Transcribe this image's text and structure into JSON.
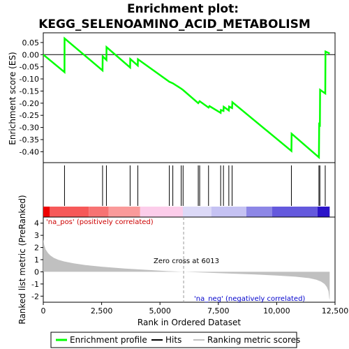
{
  "chart_data": {
    "type": "line",
    "title_line1": "Enrichment plot:",
    "title_line2": "KEGG_SELENOAMINO_ACID_METABOLISM",
    "es_panel": {
      "ylabel": "Enrichment score (ES)",
      "ylim": [
        -0.445,
        0.09
      ],
      "yticks": [
        0.05,
        0.0,
        -0.05,
        -0.1,
        -0.15,
        -0.2,
        -0.25,
        -0.3,
        -0.35,
        -0.4
      ],
      "ytick_labels": [
        "0.05",
        "0.00",
        "-0.05",
        "-0.10",
        "-0.15",
        "-0.20",
        "-0.25",
        "-0.30",
        "-0.35",
        "-0.40"
      ],
      "line_color": "#00ff00",
      "points": [
        [
          0,
          0.0
        ],
        [
          910,
          -0.072
        ],
        [
          912,
          0.067
        ],
        [
          2540,
          -0.065
        ],
        [
          2545,
          -0.007
        ],
        [
          2705,
          -0.022
        ],
        [
          2710,
          0.031
        ],
        [
          3720,
          -0.053
        ],
        [
          3725,
          -0.018
        ],
        [
          4050,
          -0.045
        ],
        [
          4055,
          -0.019
        ],
        [
          5400,
          -0.112
        ],
        [
          5550,
          -0.118
        ],
        [
          5910,
          -0.14
        ],
        [
          5990,
          -0.146
        ],
        [
          6640,
          -0.2
        ],
        [
          6700,
          -0.192
        ],
        [
          7080,
          -0.218
        ],
        [
          7120,
          -0.212
        ],
        [
          7600,
          -0.24
        ],
        [
          7610,
          -0.228
        ],
        [
          7720,
          -0.232
        ],
        [
          7730,
          -0.215
        ],
        [
          7950,
          -0.23
        ],
        [
          7960,
          -0.214
        ],
        [
          8090,
          -0.22
        ],
        [
          8100,
          -0.196
        ],
        [
          10630,
          -0.397
        ],
        [
          10640,
          -0.326
        ],
        [
          11810,
          -0.423
        ],
        [
          11820,
          -0.287
        ],
        [
          11850,
          -0.29
        ],
        [
          11860,
          -0.145
        ],
        [
          12080,
          -0.16
        ],
        [
          12090,
          0.013
        ],
        [
          12270,
          0.005
        ]
      ]
    },
    "hits": [
      910,
      2540,
      2705,
      3720,
      4050,
      5400,
      5550,
      5910,
      5990,
      6640,
      6700,
      7080,
      7600,
      7720,
      7950,
      8090,
      10630,
      11810,
      11850,
      12080
    ],
    "rank_bar_label_pos": "'na_pos' (positively correlated)",
    "rank_bar_label_neg": "'na_neg' (negatively correlated)",
    "colorbar_segments": [
      {
        "from": 0,
        "to": 280,
        "color": "#ee0000"
      },
      {
        "from": 280,
        "to": 1950,
        "color": "#f65959"
      },
      {
        "from": 1950,
        "to": 2800,
        "color": "#f77373"
      },
      {
        "from": 2800,
        "to": 4150,
        "color": "#fa9a9a"
      },
      {
        "from": 4150,
        "to": 5980,
        "color": "#fccdea"
      },
      {
        "from": 5980,
        "to": 7200,
        "color": "#dcd9f7"
      },
      {
        "from": 7200,
        "to": 8700,
        "color": "#c5c2f3"
      },
      {
        "from": 8700,
        "to": 9800,
        "color": "#8d87e6"
      },
      {
        "from": 9800,
        "to": 11750,
        "color": "#6459dd"
      },
      {
        "from": 11750,
        "to": 12270,
        "color": "#2b14c9"
      }
    ],
    "metric_panel": {
      "ylabel": "Ranked list metric (PreRanked)",
      "ylim": [
        -2.5,
        4.5
      ],
      "yticks": [
        4,
        3,
        2,
        1,
        0,
        -1,
        -2
      ],
      "ytick_labels": [
        "4",
        "3",
        "2",
        "1",
        "0",
        "-1",
        "-2"
      ],
      "fill_color": "#c0c0c0",
      "profile": [
        [
          0,
          2.7
        ],
        [
          40,
          2.2
        ],
        [
          100,
          1.85
        ],
        [
          200,
          1.55
        ],
        [
          300,
          1.35
        ],
        [
          450,
          1.15
        ],
        [
          650,
          0.98
        ],
        [
          900,
          0.85
        ],
        [
          1300,
          0.7
        ],
        [
          1800,
          0.56
        ],
        [
          2500,
          0.42
        ],
        [
          3500,
          0.27
        ],
        [
          4500,
          0.15
        ],
        [
          5300,
          0.06
        ],
        [
          6013,
          0.0
        ],
        [
          7000,
          -0.07
        ],
        [
          8000,
          -0.14
        ],
        [
          9000,
          -0.21
        ],
        [
          10000,
          -0.3
        ],
        [
          10800,
          -0.4
        ],
        [
          11400,
          -0.52
        ],
        [
          11700,
          -0.65
        ],
        [
          11900,
          -0.8
        ],
        [
          12050,
          -1.0
        ],
        [
          12150,
          -1.25
        ],
        [
          12220,
          -1.6
        ],
        [
          12255,
          -2.2
        ],
        [
          12270,
          -2.3
        ]
      ],
      "zero_cross_label": "Zero cross at 6013",
      "zero_cross": 6013
    },
    "xlabel": "Rank in Ordered Dataset",
    "xlim": [
      0,
      12500
    ],
    "xticks": [
      0,
      2500,
      5000,
      7500,
      10000,
      12500
    ],
    "xtick_labels": [
      "0",
      "2,500",
      "5,000",
      "7,500",
      "10,000",
      "12,500"
    ],
    "legend": {
      "placement": "bottom",
      "entries": [
        "Enrichment profile",
        "Hits",
        "Ranking metric scores"
      ]
    }
  }
}
